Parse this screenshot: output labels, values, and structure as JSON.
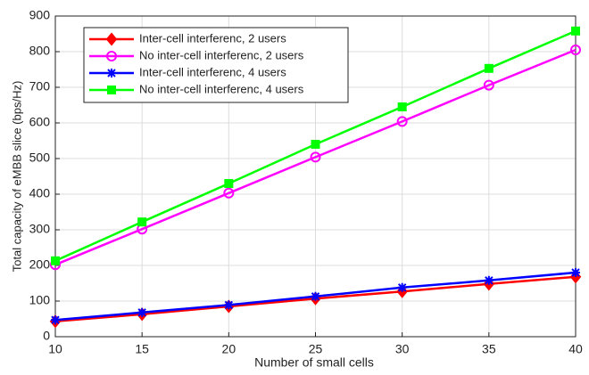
{
  "chart_data": {
    "type": "line",
    "xlabel": "Number of small cells",
    "ylabel": "Total capacity of eMBB slice (bps/Hz)",
    "x": [
      10,
      15,
      20,
      25,
      30,
      35,
      40
    ],
    "series": [
      {
        "name": "Inter-cell interferenc, 2 users",
        "color": "#ff0000",
        "marker": "diamond",
        "values": [
          43,
          63,
          85,
          107,
          127,
          148,
          168
        ]
      },
      {
        "name": "No inter-cell interferenc, 2 users",
        "color": "#ff00ff",
        "marker": "circle",
        "values": [
          202,
          302,
          403,
          504,
          604,
          706,
          805
        ]
      },
      {
        "name": "Inter-cell interferenc, 4 users",
        "color": "#0000ff",
        "marker": "asterisk",
        "values": [
          47,
          68,
          89,
          113,
          138,
          158,
          180
        ]
      },
      {
        "name": "No inter-cell interferenc, 4 users",
        "color": "#00ff00",
        "marker": "square",
        "values": [
          213,
          322,
          430,
          540,
          645,
          753,
          858
        ]
      }
    ],
    "xlim": [
      10,
      40
    ],
    "xticks": [
      10,
      15,
      20,
      25,
      30,
      35,
      40
    ],
    "ylim": [
      0,
      900
    ],
    "yticks": [
      0,
      100,
      200,
      300,
      400,
      500,
      600,
      700,
      800,
      900
    ],
    "grid": true,
    "legend": "upper left"
  }
}
